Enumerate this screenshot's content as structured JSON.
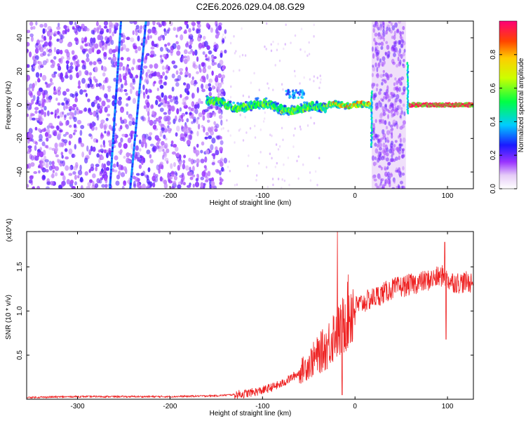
{
  "title": "C2E6.2026.029.04.08.G29",
  "chart_data": [
    {
      "type": "heatmap",
      "xlabel": "Height of straight line (km)",
      "ylabel": "Frequency (Hz)",
      "xlim": [
        -355,
        128
      ],
      "ylim": [
        -50,
        50
      ],
      "xticks": [
        "-300",
        "-200",
        "-100",
        "0",
        "100"
      ],
      "yticks": [
        "-40",
        "-20",
        "0",
        "20",
        "40"
      ],
      "colorbar": {
        "label": "Normalized spectral amplitude",
        "range": [
          0,
          1
        ],
        "ticks": [
          "0.0",
          "0.2",
          "0.4",
          "0.6",
          "0.8"
        ]
      },
      "features": [
        {
          "name": "steep streak A",
          "x_start": -265,
          "x_end": -253,
          "freq_start": -50,
          "freq_end": 50
        },
        {
          "name": "steep streak B",
          "x_start": -243,
          "x_end": -226,
          "freq_start": -50,
          "freq_end": 50
        },
        {
          "name": "main signal band",
          "x_start": -160,
          "x_end": 128,
          "freq_center": 0
        },
        {
          "name": "vertical stripe",
          "x_center": 18,
          "freq_start": -25,
          "freq_end": 8
        },
        {
          "name": "vertical stripe",
          "x_center": 57,
          "freq_start": -5,
          "freq_end": 25
        }
      ]
    },
    {
      "type": "line",
      "xlabel": "Height of straight line (km)",
      "ylabel": "SNR (10 * v/v)",
      "scale_label": "(x10^4)",
      "xlim": [
        -355,
        128
      ],
      "ylim": [
        0,
        1.9
      ],
      "xticks": [
        "-300",
        "-200",
        "-100",
        "0",
        "100"
      ],
      "yticks": [
        "0.5",
        "1.0",
        "1.5"
      ],
      "color": "#ee2222",
      "series": [
        {
          "name": "SNR",
          "x": [
            -355,
            -300,
            -250,
            -200,
            -150,
            -120,
            -100,
            -80,
            -60,
            -40,
            -30,
            -20,
            -15,
            -10,
            0,
            20,
            40,
            60,
            80,
            95,
            100,
            110,
            128
          ],
          "y": [
            0.02,
            0.03,
            0.03,
            0.03,
            0.04,
            0.06,
            0.1,
            0.17,
            0.3,
            0.5,
            0.6,
            0.8,
            0.75,
            0.95,
            1.05,
            1.15,
            1.25,
            1.3,
            1.35,
            1.4,
            1.35,
            1.32,
            1.33
          ]
        }
      ]
    }
  ]
}
